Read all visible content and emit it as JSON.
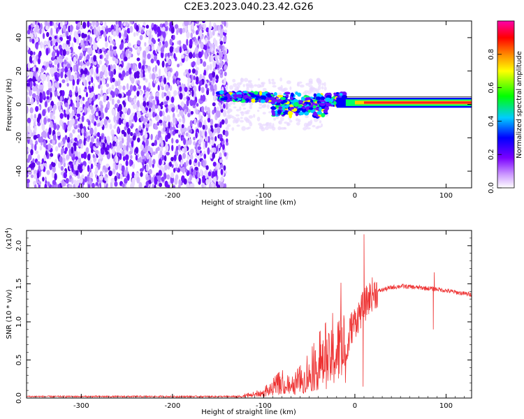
{
  "title": "C2E3.2023.040.23.42.G26",
  "chart_data": [
    {
      "type": "heatmap",
      "xlabel": "Height of straight line (km)",
      "ylabel": "Frequency (Hz)",
      "xlim": [
        -360,
        128
      ],
      "ylim": [
        -50,
        50
      ],
      "x_ticks": [
        -300,
        -200,
        -100,
        0,
        100
      ],
      "y_ticks": [
        -40,
        -20,
        0,
        20,
        40
      ],
      "grid": false,
      "colorbar": {
        "label": "Normalized spectral amplitude",
        "range": [
          0,
          1
        ],
        "ticks": [
          "0.0",
          "0.2",
          "0.4",
          "0.6",
          "0.8"
        ],
        "colormap": "rainbow (white-purple-blue-cyan-green-yellow-red-magenta)"
      },
      "features": [
        {
          "description": "broadband noise",
          "x_range": [
            -360,
            -140
          ],
          "freq_range": [
            -50,
            50
          ]
        },
        {
          "description": "signal ridge",
          "x_range": [
            -150,
            128
          ],
          "freq_center_start": 5,
          "freq_center_end": 1
        }
      ]
    },
    {
      "type": "line",
      "xlabel": "Height of straight line (km)",
      "ylabel": "SNR (10 * v/v)",
      "y_scale_label": "(x10",
      "y_scale_exponent": "4",
      "xlim": [
        -360,
        128
      ],
      "ylim": [
        0,
        2.2
      ],
      "x_ticks": [
        -300,
        -200,
        -100,
        0,
        100
      ],
      "y_ticks": [
        "0.0",
        "0.5",
        "1.0",
        "1.5",
        "2.0"
      ],
      "grid": false,
      "series": [
        {
          "color": "#ee3333",
          "x": [
            -360,
            -300,
            -200,
            -130,
            -110,
            -100,
            -90,
            -80,
            -70,
            -60,
            -50,
            -40,
            -30,
            -20,
            -15,
            -10,
            -5,
            0,
            5,
            10,
            15,
            20,
            30,
            40,
            50,
            60,
            70,
            80,
            90,
            100,
            110,
            120,
            128
          ],
          "y": [
            0.02,
            0.02,
            0.02,
            0.02,
            0.05,
            0.08,
            0.15,
            0.22,
            0.15,
            0.25,
            0.35,
            0.5,
            0.6,
            0.7,
            0.9,
            0.45,
            0.9,
            1.0,
            1.1,
            1.2,
            1.3,
            1.38,
            1.42,
            1.45,
            1.47,
            1.46,
            1.45,
            1.44,
            1.43,
            1.41,
            1.39,
            1.37,
            1.36
          ]
        }
      ],
      "spikes": [
        {
          "x": 10,
          "y": 2.15
        },
        {
          "x": 9,
          "y": 0.15
        },
        {
          "x": 87,
          "y": 1.65
        },
        {
          "x": 86,
          "y": 0.9
        }
      ]
    }
  ]
}
